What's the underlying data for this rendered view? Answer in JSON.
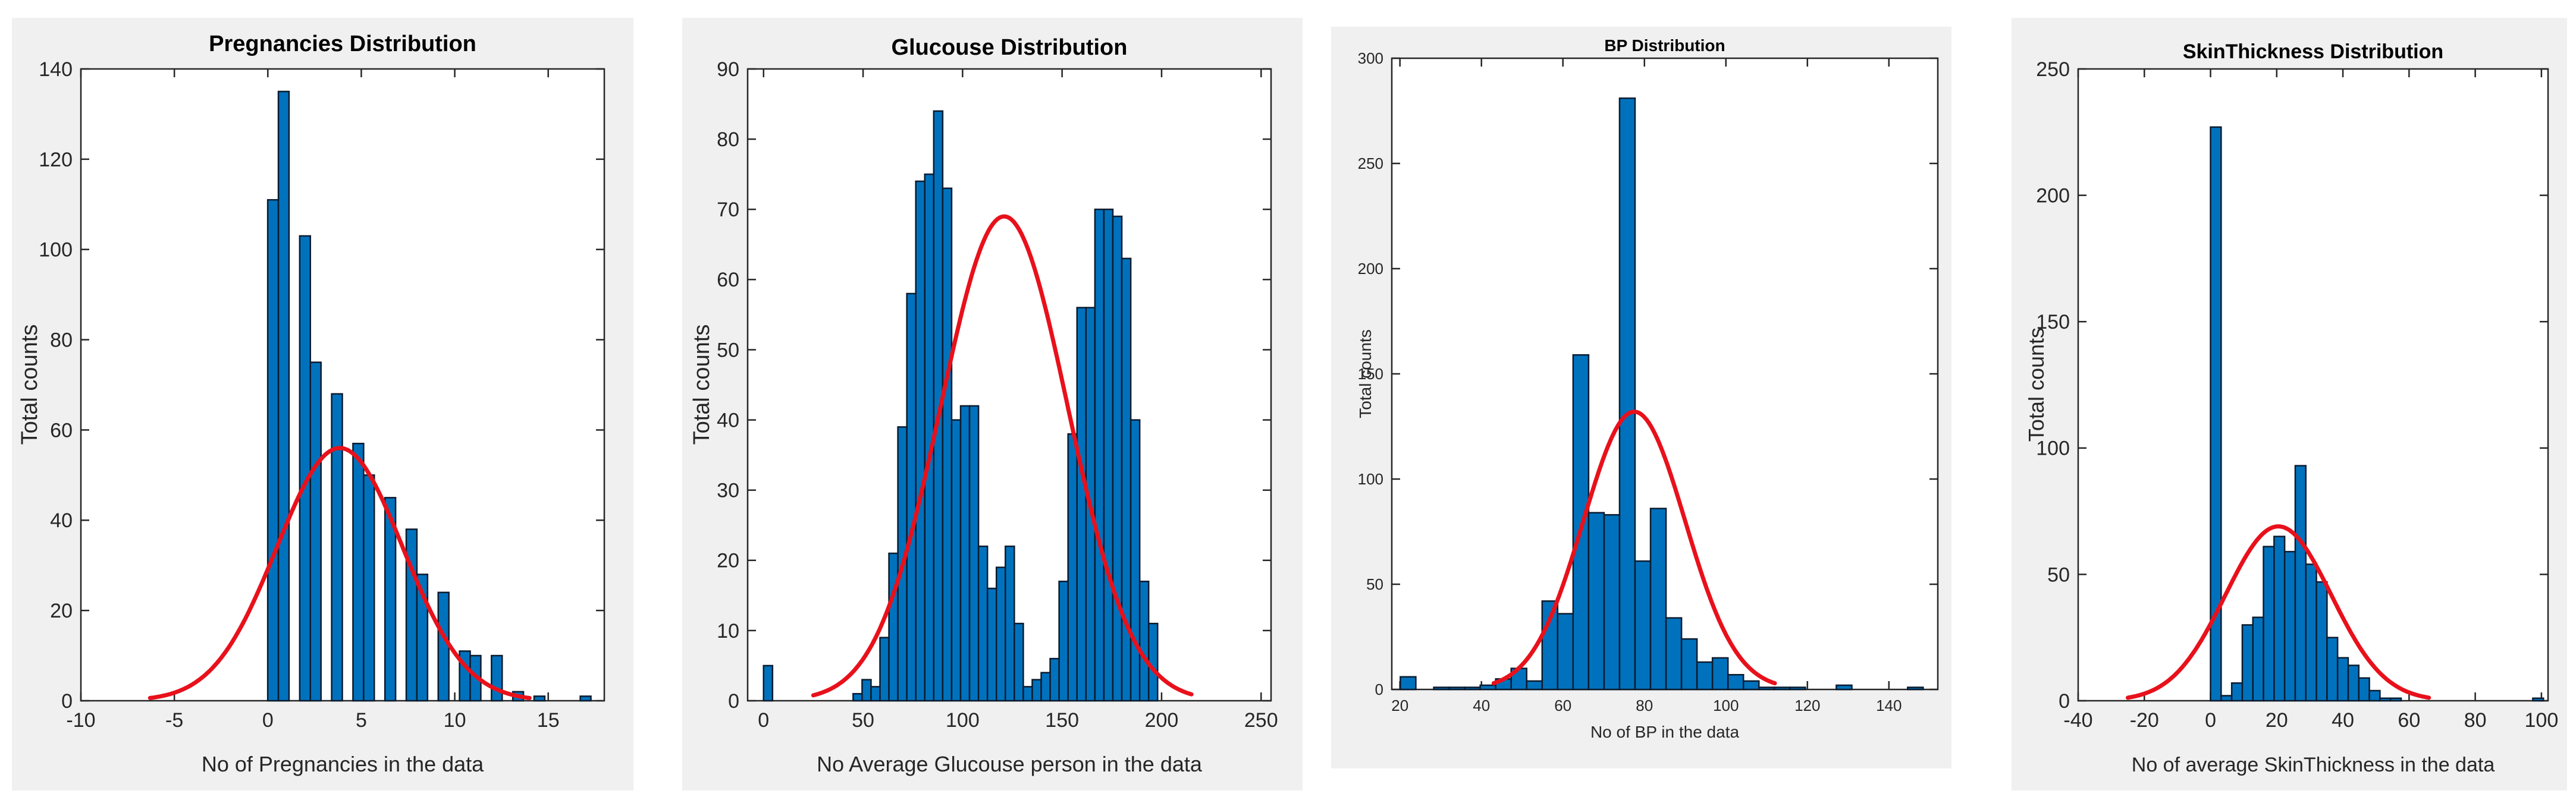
{
  "colors": {
    "bar": "#0072bd",
    "fit": "#e8111b"
  },
  "chart_data": [
    {
      "type": "bar",
      "title": "Pregnancies Distribution",
      "xlabel": "No of Pregnancies in the data",
      "ylabel": "Total counts",
      "xlim": [
        -10,
        18
      ],
      "ylim": [
        0,
        140
      ],
      "xticks": [
        -10,
        -5,
        0,
        5,
        10,
        15
      ],
      "yticks": [
        0,
        20,
        40,
        60,
        80,
        100,
        120,
        140
      ],
      "bin_width": 0.57,
      "x": [
        0.28,
        0.85,
        1.99,
        2.56,
        3.7,
        4.84,
        5.41,
        6.55,
        7.69,
        8.26,
        9.4,
        10.54,
        11.11,
        12.25,
        13.39,
        14.53,
        17
      ],
      "values": [
        111,
        135,
        103,
        75,
        68,
        57,
        50,
        45,
        38,
        28,
        24,
        11,
        10,
        10,
        2,
        1,
        1
      ],
      "fit": {
        "mean": 3.85,
        "sd": 3.37,
        "peak": 56,
        "range": [
          -6.3,
          14
        ]
      }
    },
    {
      "type": "bar",
      "title": "Glucouse Distribution",
      "xlabel": "No Average Glucouse person in the data",
      "ylabel": "Total counts",
      "xlim": [
        -8,
        255
      ],
      "ylim": [
        0,
        90
      ],
      "xticks": [
        0,
        50,
        100,
        150,
        200,
        250
      ],
      "yticks": [
        0,
        10,
        20,
        30,
        40,
        50,
        60,
        70,
        80,
        90
      ],
      "bin_width": 4.5,
      "x": [
        2.25,
        47.25,
        51.75,
        56.25,
        60.75,
        65.25,
        69.75,
        74.25,
        78.75,
        83.25,
        87.75,
        92.25,
        96.75,
        101.25,
        105.75,
        110.25,
        114.75,
        119.25,
        123.75,
        128.25,
        132.75,
        137.25,
        141.75,
        146.25,
        150.75,
        155.25,
        159.75,
        164.25,
        168.75,
        173.25,
        177.75,
        182.25,
        186.75,
        191.25,
        195.75
      ],
      "values": [
        5,
        1,
        3,
        2,
        9,
        21,
        39,
        58,
        74,
        75,
        84,
        73,
        40,
        42,
        42,
        22,
        16,
        19,
        22,
        11,
        2,
        3,
        4,
        6,
        17,
        38,
        56,
        56,
        70,
        70,
        69,
        63,
        40,
        17,
        11
      ],
      "fit": {
        "mean": 120.9,
        "sd": 32,
        "peak": 69,
        "range": [
          25,
          215
        ]
      }
    },
    {
      "type": "bar",
      "title": "BP Distribution",
      "xlabel": "No of BP in the data",
      "ylabel": "Total counts",
      "xlim": [
        18,
        152
      ],
      "ylim": [
        0,
        300
      ],
      "xticks": [
        20,
        40,
        60,
        80,
        100,
        120,
        140
      ],
      "yticks": [
        0,
        50,
        100,
        150,
        200,
        250,
        300
      ],
      "bin_width": 3.8,
      "x": [
        22,
        30.2,
        34,
        37.8,
        41.6,
        45.4,
        49.2,
        53,
        56.8,
        60.6,
        64.4,
        68.2,
        72,
        75.8,
        79.6,
        83.4,
        87.2,
        91,
        94.8,
        98.6,
        102.4,
        106.2,
        110,
        113.8,
        117.6,
        129,
        146.5
      ],
      "values": [
        6,
        1,
        1,
        1,
        2,
        5,
        10,
        4,
        42,
        36,
        159,
        84,
        83,
        281,
        61,
        86,
        34,
        24,
        13,
        15,
        7,
        4,
        1,
        1,
        1,
        2,
        1
      ],
      "fit": {
        "mean": 77.5,
        "sd": 12.5,
        "peak": 132,
        "range": [
          43,
          112
        ]
      }
    },
    {
      "type": "bar",
      "title": "SkinThickness Distribution",
      "xlabel": "No of average SkinThickness in the data",
      "ylabel": "Total counts",
      "xlim": [
        -40,
        102
      ],
      "ylim": [
        0,
        250
      ],
      "xticks": [
        -40,
        -20,
        0,
        20,
        40,
        60,
        80,
        100
      ],
      "yticks": [
        0,
        50,
        100,
        150,
        200,
        250
      ],
      "bin_width": 3.2,
      "x": [
        1.6,
        4.8,
        8,
        11.2,
        14.4,
        17.6,
        20.8,
        24,
        27.2,
        30.4,
        33.6,
        36.8,
        40,
        43.2,
        46.4,
        49.6,
        52.8,
        56,
        99
      ],
      "values": [
        227,
        2,
        7,
        30,
        33,
        61,
        65,
        59,
        93,
        54,
        47,
        25,
        17,
        14,
        9,
        4,
        1,
        1,
        1
      ],
      "fit": {
        "mean": 20.5,
        "sd": 16,
        "peak": 69,
        "range": [
          -25,
          66
        ]
      }
    }
  ]
}
